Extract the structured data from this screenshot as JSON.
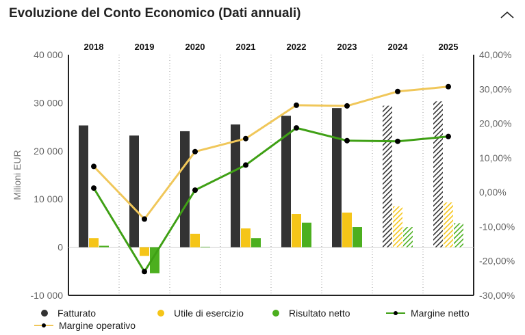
{
  "header": {
    "title": "Evoluzione del Conto Economico (Dati annuali)"
  },
  "colors": {
    "fatturato": "#333333",
    "utile": "#f5c518",
    "risultato": "#4caf1f",
    "margine_netto": "#3fa015",
    "margine_operativo": "#f0c75a",
    "marker": "#000000",
    "grid": "#999999",
    "axis": "#222222"
  },
  "chart_data": {
    "type": "bar",
    "title": "Evoluzione del Conto Economico (Dati annuali)",
    "categories": [
      "2018",
      "2019",
      "2020",
      "2021",
      "2022",
      "2023",
      "2024",
      "2025"
    ],
    "forecast_categories": [
      "2024",
      "2025"
    ],
    "ylabel": "Milioni EUR",
    "ylim": [
      -10000,
      40000
    ],
    "y_ticks": [
      "40 000",
      "30 000",
      "20 000",
      "10 000",
      "0",
      "-10 000"
    ],
    "y_tick_values": [
      40000,
      30000,
      20000,
      10000,
      0,
      -10000
    ],
    "y2lim": [
      -30,
      40
    ],
    "y2_ticks": [
      "40,00%",
      "30,00%",
      "20,00%",
      "10,00%",
      "0,00%",
      "-10,00%",
      "-20,00%",
      "-30,00%"
    ],
    "y2_tick_values": [
      40,
      30,
      20,
      10,
      0,
      -10,
      -20,
      -30
    ],
    "series": [
      {
        "name": "Fatturato",
        "kind": "bar",
        "axis": "left",
        "values": [
          25300,
          23200,
          24100,
          25500,
          27300,
          28900,
          29400,
          30300
        ]
      },
      {
        "name": "Utile di esercizio",
        "kind": "bar",
        "axis": "left",
        "values": [
          1900,
          -1800,
          2800,
          3900,
          6900,
          7200,
          8500,
          9300
        ]
      },
      {
        "name": "Risultato netto",
        "kind": "bar",
        "axis": "left",
        "values": [
          300,
          -5400,
          100,
          1900,
          5100,
          4200,
          4200,
          5000
        ]
      },
      {
        "name": "Margine netto",
        "kind": "line",
        "axis": "right",
        "values": [
          1.2,
          -23.1,
          0.6,
          7.9,
          18.7,
          15.0,
          14.8,
          16.2
        ]
      },
      {
        "name": "Margine operativo",
        "kind": "line",
        "axis": "right",
        "values": [
          7.5,
          -7.8,
          11.8,
          15.6,
          25.3,
          25.1,
          29.3,
          30.7
        ]
      }
    ]
  }
}
